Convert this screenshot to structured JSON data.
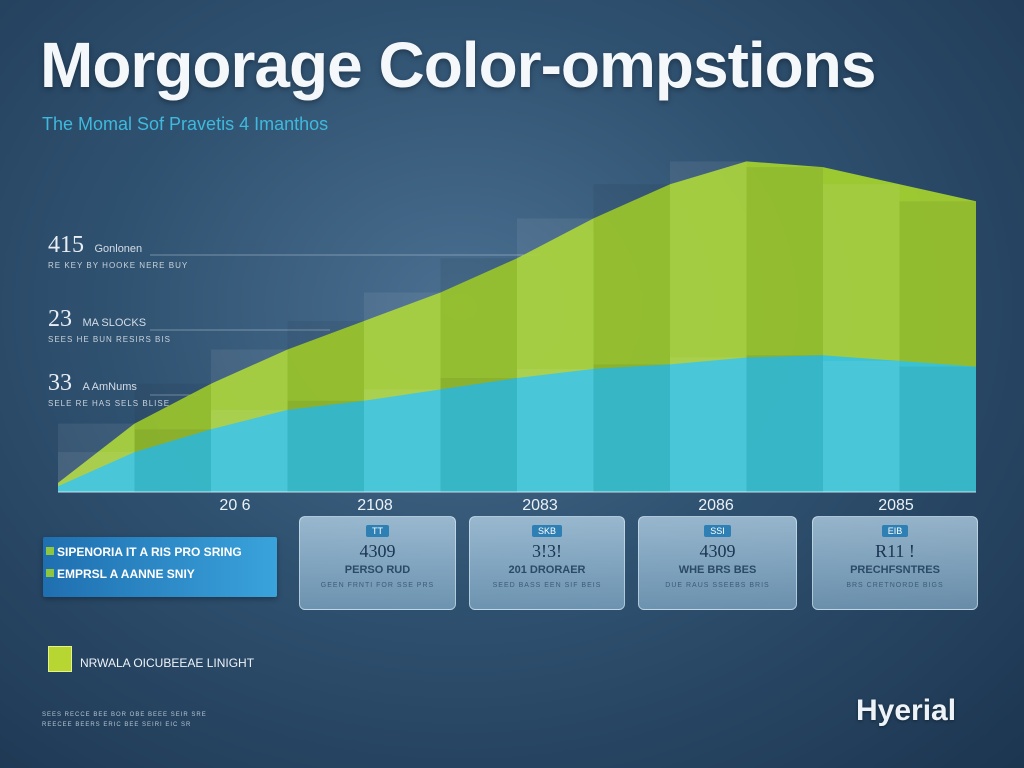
{
  "title": "Morgorage Color-ompstions",
  "subtitle": "The Momal Sof Pravetis 4 Imanthos",
  "annotations": [
    {
      "value": "415",
      "label": "Gonlonen",
      "caption": "RE KEY BY HOOKE NERE BUY"
    },
    {
      "value": "23",
      "label": "MA SLOCKS",
      "caption": "SEES HE BUN RESIRS BIS"
    },
    {
      "value": "33",
      "label": "A AmNums",
      "caption": "SELE RE HAS SELS BLISE"
    }
  ],
  "chart_data": {
    "type": "area",
    "x": [
      0,
      1,
      2,
      3,
      4,
      5,
      6,
      7,
      8,
      9,
      10,
      11,
      12
    ],
    "xlim": [
      0,
      12
    ],
    "x_tick_labels": [
      {
        "x": 2,
        "label": "20 6"
      },
      {
        "x": 4,
        "label": "2108"
      },
      {
        "x": 6.5,
        "label": "2083"
      },
      {
        "x": 9,
        "label": "2086"
      },
      {
        "x": 11,
        "label": "2085"
      }
    ],
    "series": [
      {
        "name": "",
        "color": "#33c2e2",
        "values": [
          5,
          35,
          55,
          72,
          80,
          90,
          100,
          108,
          112,
          118,
          120,
          115,
          110
        ]
      },
      {
        "name": "",
        "color": "#a6d22e",
        "values": [
          8,
          60,
          95,
          125,
          150,
          175,
          205,
          240,
          270,
          290,
          285,
          270,
          255
        ]
      }
    ],
    "ylim": [
      0,
      300
    ],
    "grid": false,
    "legend": "bottom-left"
  },
  "years": [
    "20 6",
    "2108",
    "2083",
    "2086",
    "2085"
  ],
  "legend": {
    "lines": [
      "SIPENORIA IT A RIS PRO SRING",
      "EMPRSL A AANNE SNIY"
    ],
    "colors": [
      "#8ec640",
      "#8ec640"
    ]
  },
  "cards": [
    {
      "badge": "TT",
      "value": "4309",
      "label": "PERSO RUD",
      "caption": "GEEN FRNTI FOR SSE PRS"
    },
    {
      "badge": "SKB",
      "value": "3!3!",
      "label": "201 DRORAER",
      "caption": "SEED BASS EEN SIF BEIS"
    },
    {
      "badge": "SSI",
      "value": "4309",
      "label": "WHE BRS BES",
      "caption": "DUE RAUS SSEEBS BRIS"
    },
    {
      "badge": "EIB",
      "value": "R11 !",
      "label": "PRECHFSNTRES",
      "caption": "BRS CRETNORDE BIGS"
    }
  ],
  "key": {
    "label": "NRWALA OICUBEEAE LINIGHT",
    "color": "#b7d631"
  },
  "footnotes": [
    "SEES RECCE BEE BOR OBE BEEE SEIR SRE",
    "REECEE BEERS ERIC BEE SEIRI EIC SR"
  ],
  "brand": "Hyerial"
}
